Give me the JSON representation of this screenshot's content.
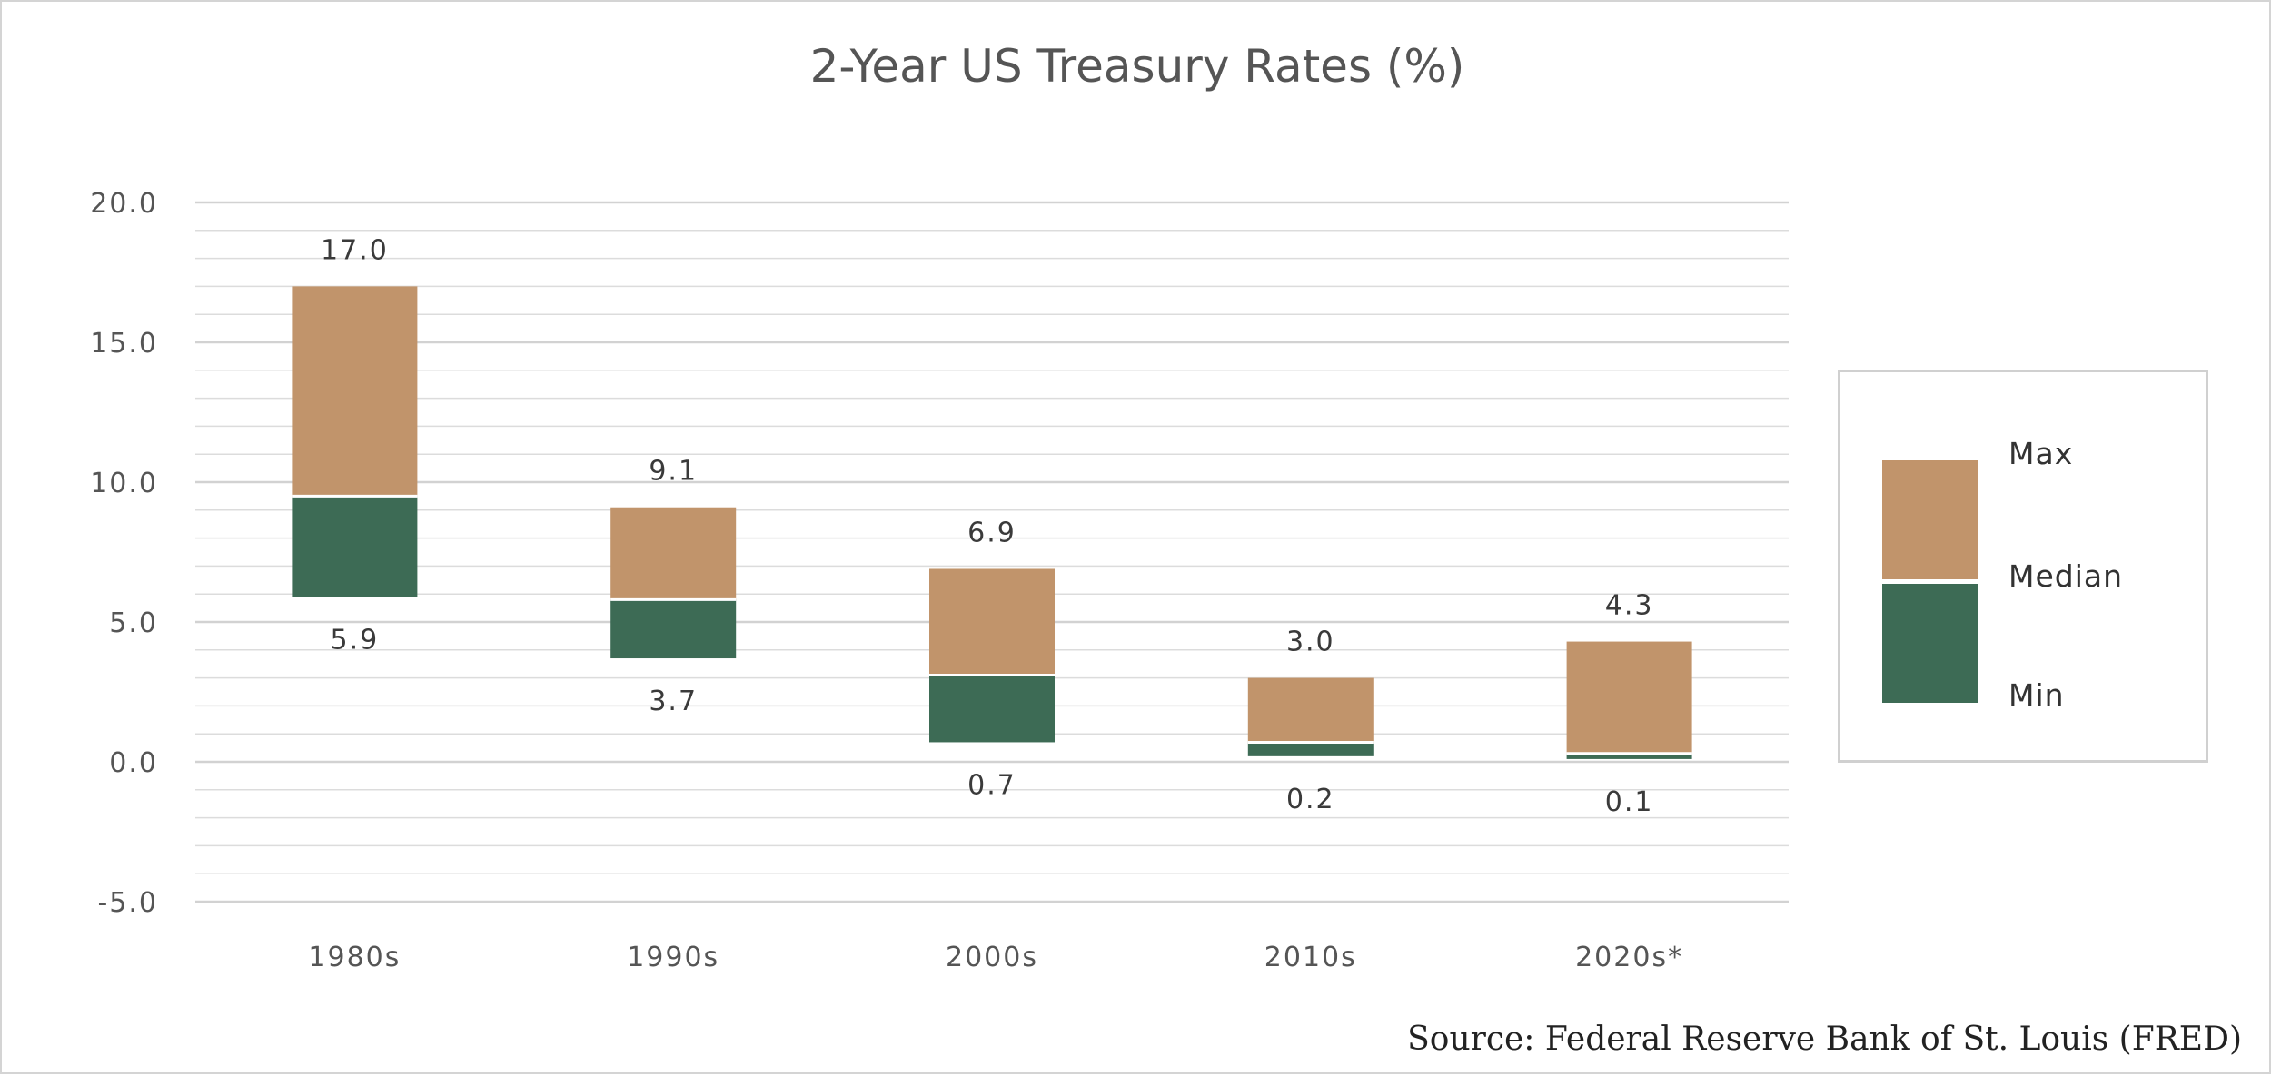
{
  "chart_data": {
    "type": "bar",
    "subtype": "floating-range",
    "title": "2-Year US Treasury Rates (%)",
    "categories": [
      "1980s",
      "1990s",
      "2000s",
      "2010s",
      "2020s*"
    ],
    "series": [
      {
        "name": "Max",
        "values": [
          17.0,
          9.1,
          6.9,
          3.0,
          4.3
        ]
      },
      {
        "name": "Median",
        "values": [
          9.5,
          5.8,
          3.1,
          0.7,
          0.3
        ]
      },
      {
        "name": "Min",
        "values": [
          5.9,
          3.7,
          0.7,
          0.2,
          0.1
        ]
      }
    ],
    "max_labels": [
      "17.0",
      "9.1",
      "6.9",
      "3.0",
      "4.3"
    ],
    "min_labels": [
      "5.9",
      "3.7",
      "0.7",
      "0.2",
      "0.1"
    ],
    "ylim": [
      -5,
      20
    ],
    "yticks": [
      20,
      15,
      10,
      5,
      0,
      -5
    ],
    "ytick_labels": [
      "20.0",
      "15.0",
      "10.0",
      "5.0",
      "0.0",
      "-5.0"
    ],
    "minor_grid_step": 1,
    "grid": true,
    "legend_position": "right",
    "legend": {
      "max": "Max",
      "median": "Median",
      "min": "Min"
    },
    "colors": {
      "upper": "#c1946b",
      "lower": "#3d6b55",
      "grid": "#dcdcdc",
      "divider": "#ffffff"
    },
    "source": "Source: Federal Reserve Bank of St. Louis (FRED)"
  }
}
